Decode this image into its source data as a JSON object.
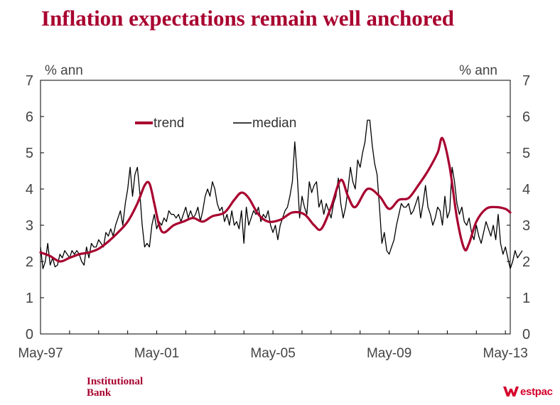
{
  "title": "Inflation expectations remain well anchored",
  "branding": {
    "left_line1": "Institutional",
    "left_line2": "Bank",
    "right_text": "estpac",
    "right_icon": "westpac-w-logo-icon"
  },
  "colors": {
    "title": "#a8002f",
    "trend": "#a8002f",
    "median": "#000000",
    "westpac": "#d5002b"
  },
  "chart_data": {
    "type": "line",
    "ylabel_left": "% ann",
    "ylabel_right": "% ann",
    "ylim": [
      0,
      7
    ],
    "yticks": [
      "0",
      "1",
      "2",
      "3",
      "4",
      "5",
      "6",
      "7"
    ],
    "xlim": [
      "1997-05",
      "2013-07"
    ],
    "xtick_labels": [
      "May-97",
      "May-01",
      "May-05",
      "May-09",
      "May-13"
    ],
    "xtick_dates": [
      "1997-05",
      "2001-05",
      "2005-05",
      "2009-05",
      "2013-05"
    ],
    "grid": false,
    "legend": "top-left",
    "series": [
      {
        "name": "trend",
        "color": "#a8002f",
        "points": [
          [
            "1997-05",
            2.25
          ],
          [
            "1997-09",
            2.15
          ],
          [
            "1998-01",
            2.0
          ],
          [
            "1998-05",
            2.1
          ],
          [
            "1998-09",
            2.2
          ],
          [
            "1999-01",
            2.25
          ],
          [
            "1999-05",
            2.35
          ],
          [
            "1999-09",
            2.55
          ],
          [
            "2000-01",
            2.8
          ],
          [
            "2000-05",
            3.1
          ],
          [
            "2000-09",
            3.6
          ],
          [
            "2000-12",
            4.1
          ],
          [
            "2001-02",
            4.15
          ],
          [
            "2001-04",
            3.6
          ],
          [
            "2001-06",
            3.0
          ],
          [
            "2001-08",
            2.8
          ],
          [
            "2001-12",
            3.0
          ],
          [
            "2002-04",
            3.1
          ],
          [
            "2002-08",
            3.2
          ],
          [
            "2002-12",
            3.1
          ],
          [
            "2003-04",
            3.25
          ],
          [
            "2003-09",
            3.35
          ],
          [
            "2004-01",
            3.7
          ],
          [
            "2004-04",
            3.9
          ],
          [
            "2004-07",
            3.75
          ],
          [
            "2004-11",
            3.3
          ],
          [
            "2005-03",
            3.1
          ],
          [
            "2005-08",
            3.15
          ],
          [
            "2006-01",
            3.35
          ],
          [
            "2006-06",
            3.3
          ],
          [
            "2006-10",
            3.0
          ],
          [
            "2007-01",
            2.9
          ],
          [
            "2007-05",
            3.5
          ],
          [
            "2007-09",
            4.25
          ],
          [
            "2007-12",
            3.8
          ],
          [
            "2008-03",
            3.5
          ],
          [
            "2008-08",
            4.0
          ],
          [
            "2009-01",
            3.8
          ],
          [
            "2009-05",
            3.45
          ],
          [
            "2009-09",
            3.7
          ],
          [
            "2010-01",
            3.75
          ],
          [
            "2010-05",
            4.1
          ],
          [
            "2010-09",
            4.5
          ],
          [
            "2011-01",
            5.0
          ],
          [
            "2011-03",
            5.4
          ],
          [
            "2011-06",
            4.6
          ],
          [
            "2011-09",
            3.2
          ],
          [
            "2011-12",
            2.35
          ],
          [
            "2012-02",
            2.5
          ],
          [
            "2012-05",
            3.1
          ],
          [
            "2012-09",
            3.45
          ],
          [
            "2013-01",
            3.5
          ],
          [
            "2013-05",
            3.45
          ],
          [
            "2013-07",
            3.35
          ]
        ]
      },
      {
        "name": "median",
        "color": "#000000",
        "values": [
          2.4,
          1.8,
          2.0,
          2.5,
          1.9,
          2.1,
          1.85,
          1.9,
          2.2,
          2.1,
          2.3,
          2.2,
          2.1,
          2.3,
          2.2,
          2.3,
          2.2,
          2.0,
          1.9,
          2.4,
          2.1,
          2.5,
          2.4,
          2.4,
          2.6,
          2.5,
          2.4,
          2.8,
          2.7,
          2.9,
          2.7,
          3.0,
          3.2,
          3.4,
          3.0,
          3.6,
          4.0,
          4.6,
          3.8,
          4.4,
          4.6,
          3.9,
          3.0,
          2.4,
          2.5,
          2.4,
          3.0,
          3.3,
          2.9,
          3.1,
          3.0,
          3.2,
          3.1,
          3.4,
          3.3,
          3.3,
          3.2,
          3.3,
          3.1,
          3.3,
          3.5,
          3.2,
          3.4,
          3.2,
          3.3,
          3.5,
          3.1,
          3.4,
          3.8,
          4.0,
          3.8,
          4.2,
          4.0,
          3.6,
          3.4,
          3.5,
          3.1,
          3.3,
          3.0,
          3.4,
          3.0,
          3.1,
          2.9,
          3.4,
          2.5,
          3.5,
          3.0,
          3.2,
          3.4,
          3.3,
          3.5,
          3.1,
          3.3,
          3.2,
          3.4,
          3.0,
          2.8,
          3.0,
          2.6,
          3.0,
          3.2,
          3.4,
          3.5,
          3.8,
          4.2,
          5.3,
          4.4,
          3.2,
          3.8,
          3.5,
          3.3,
          4.2,
          3.9,
          4.1,
          4.2,
          3.5,
          3.7,
          3.3,
          3.6,
          3.4,
          3.2,
          3.6,
          3.8,
          4.3,
          3.6,
          3.2,
          3.5,
          4.0,
          4.6,
          4.2,
          4.0,
          4.8,
          4.6,
          5.0,
          5.3,
          5.9,
          5.9,
          5.2,
          4.7,
          4.4,
          3.5,
          2.5,
          2.8,
          2.3,
          2.2,
          2.4,
          2.6,
          3.0,
          3.3,
          3.6,
          3.5,
          3.5,
          3.6,
          3.3,
          3.4,
          3.6,
          3.8,
          3.2,
          3.6,
          4.1,
          3.5,
          3.3,
          3.0,
          3.2,
          3.5,
          3.4,
          3.0,
          3.8,
          3.2,
          3.4,
          4.6,
          4.2,
          3.6,
          3.3,
          3.5,
          3.1,
          3.0,
          3.2,
          2.8,
          2.6,
          3.0,
          2.7,
          2.5,
          2.8,
          3.1,
          2.9,
          2.7,
          3.0,
          2.6,
          3.3,
          2.5,
          2.2,
          2.4,
          2.1,
          1.8,
          2.0,
          2.3,
          2.1,
          2.2,
          2.3
        ]
      }
    ]
  }
}
